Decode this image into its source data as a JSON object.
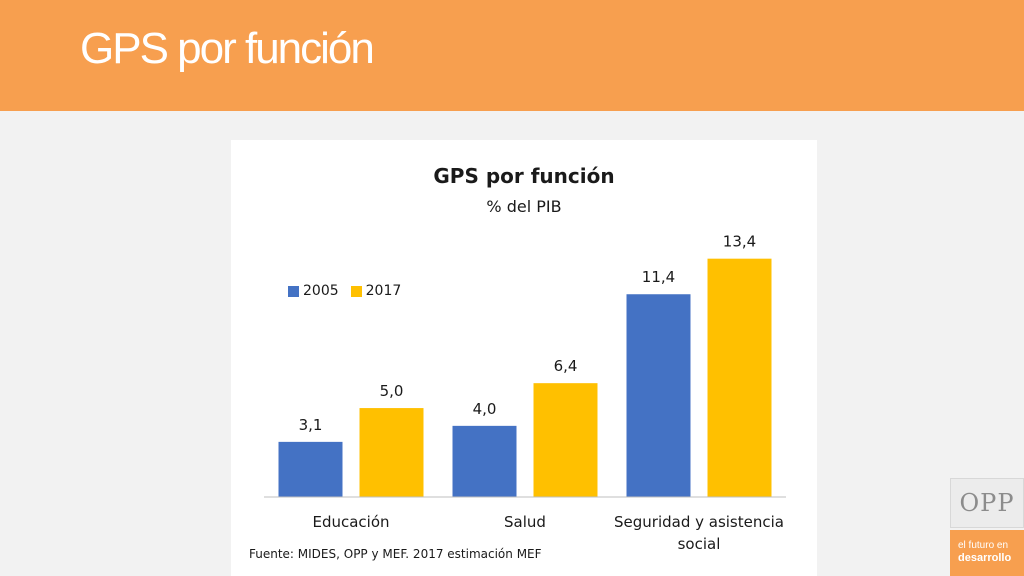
{
  "header": {
    "title": "GPS por función"
  },
  "chart_data": {
    "type": "bar",
    "title": "GPS por función",
    "subtitle": "% del PIB",
    "categories": [
      "Educación",
      "Salud",
      "Seguridad y asistencia social"
    ],
    "series": [
      {
        "name": "2005",
        "values": [
          3.1,
          4.0,
          11.4
        ],
        "color": "#4472c4"
      },
      {
        "name": "2017",
        "values": [
          5.0,
          6.4,
          13.4
        ],
        "color": "#ffc000"
      }
    ],
    "data_labels": [
      [
        "3,1",
        "4,0",
        "11,4"
      ],
      [
        "5,0",
        "6,4",
        "13,4"
      ]
    ],
    "ylim": [
      0,
      14
    ],
    "grid": false,
    "legend_position": "left"
  },
  "source": "Fuente: MIDES, OPP y MEF. 2017 estimación MEF",
  "branding": {
    "logo": "OPP",
    "tagline_line1": "el futuro en",
    "tagline_line2": "desarrollo",
    "accent_color": "#f79f4f"
  }
}
